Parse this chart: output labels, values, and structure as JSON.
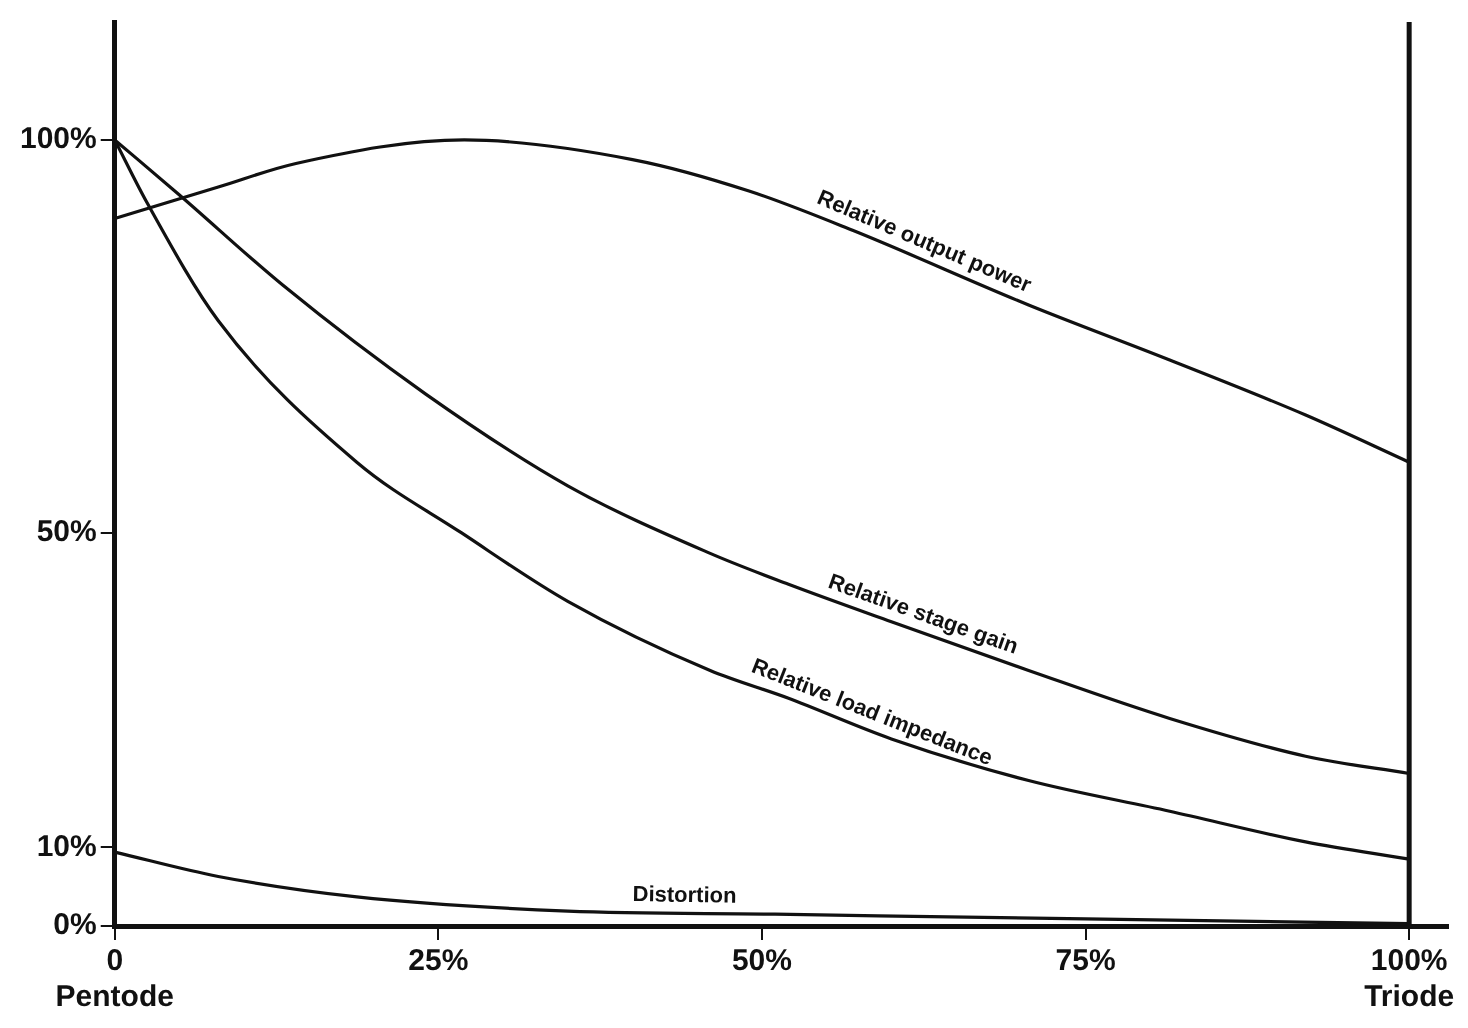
{
  "chart_data": {
    "type": "line",
    "xlim": [
      0,
      103
    ],
    "ylim": [
      0,
      115
    ],
    "xticks": [
      {
        "value": 0,
        "label": "0\nPentode"
      },
      {
        "value": 25,
        "label": "25%"
      },
      {
        "value": 50,
        "label": "50%"
      },
      {
        "value": 75,
        "label": "75%"
      },
      {
        "value": 100,
        "label": "100%\nTriode"
      }
    ],
    "yticks": [
      {
        "value": 0,
        "label": "0%"
      },
      {
        "value": 10,
        "label": "10%"
      },
      {
        "value": 50,
        "label": "50%"
      },
      {
        "value": 100,
        "label": "100%"
      }
    ],
    "series": [
      {
        "name": "Relative output power",
        "color": "#111111",
        "x": [
          0,
          8,
          14,
          27,
          40,
          49,
          57,
          70.6,
          81.5,
          92,
          100
        ],
        "values": [
          90,
          94,
          97,
          100,
          97.5,
          93.5,
          88.5,
          79,
          72,
          65,
          59
        ]
      },
      {
        "name": "Relative stage gain",
        "color": "#111111",
        "x": [
          0,
          5,
          13,
          24,
          35,
          46,
          52,
          60,
          70.6,
          81.5,
          92,
          100
        ],
        "values": [
          100,
          93,
          81.5,
          67.7,
          56,
          47.4,
          43.5,
          38.7,
          32.5,
          26.4,
          21.6,
          19.4
        ]
      },
      {
        "name": "Relative load impedance",
        "color": "#111111",
        "x": [
          0,
          2.5,
          8,
          18.7,
          26.8,
          35,
          46,
          52,
          60,
          70.6,
          81.5,
          92,
          100
        ],
        "values": [
          100,
          92,
          77,
          59,
          50,
          41.3,
          32.5,
          29,
          23.8,
          18.5,
          14.6,
          10.7,
          8.5
        ]
      },
      {
        "name": "Distortion",
        "color": "#111111",
        "x": [
          0,
          8,
          18.7,
          35,
          51,
          75,
          100
        ],
        "values": [
          9.4,
          6.3,
          3.7,
          1.9,
          1.5,
          0.9,
          0.3
        ]
      }
    ],
    "ref_lines": [
      {
        "axis": "x",
        "value": 100,
        "color": "#111111"
      }
    ],
    "grid": false,
    "legend": false,
    "marker": "none",
    "line_style": "solid"
  }
}
